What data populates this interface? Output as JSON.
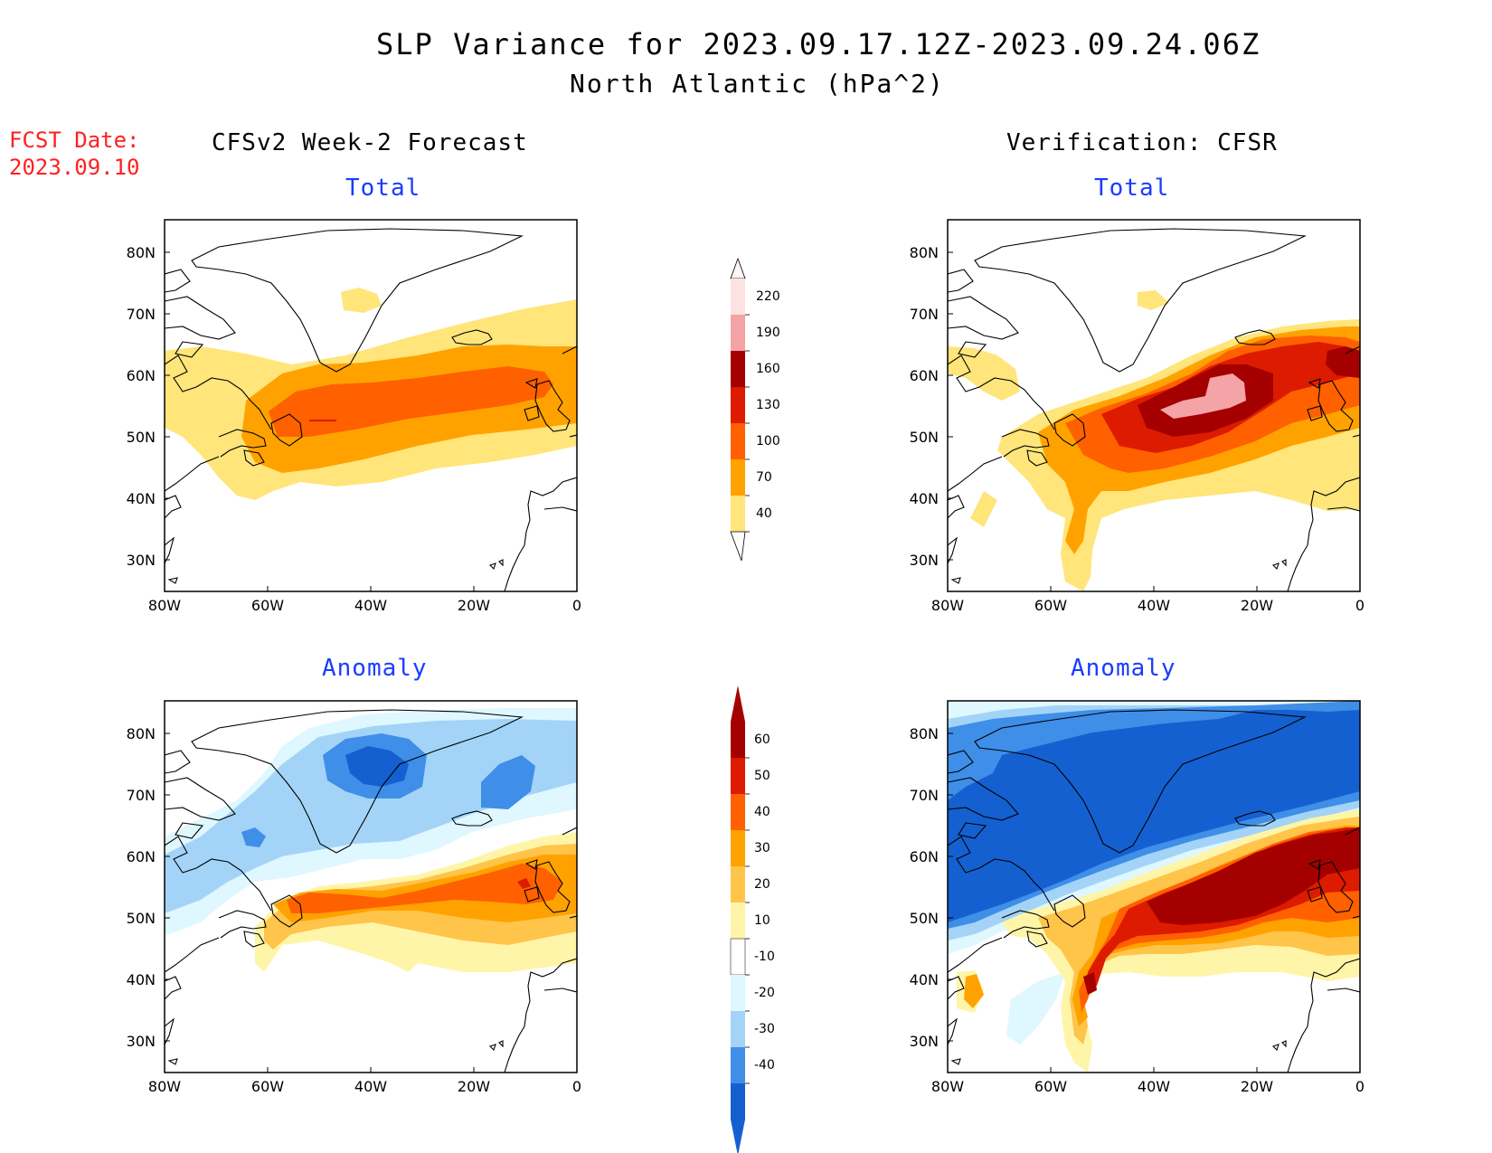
{
  "header": {
    "title_line1": "SLP Variance for 2023.09.17.12Z-2023.09.24.06Z",
    "title_line2": "North Atlantic (hPa^2)"
  },
  "fcst": {
    "line1": "FCST Date:",
    "line2": "2023.09.10"
  },
  "columns": {
    "left_title": "CFSv2 Week-2 Forecast",
    "right_title": "Verification: CFSR"
  },
  "panels": {
    "top_left": "Total",
    "top_right": "Total",
    "bottom_left": "Anomaly",
    "bottom_right": "Anomaly"
  },
  "axes": {
    "lat_labels": [
      "80N",
      "70N",
      "60N",
      "50N",
      "40N",
      "30N"
    ],
    "lon_labels": [
      "80W",
      "60W",
      "40W",
      "20W",
      "0"
    ]
  },
  "colorbars": {
    "total": {
      "labels": [
        "220",
        "190",
        "160",
        "130",
        "100",
        "70",
        "40"
      ],
      "colors": [
        "#fde2e2",
        "#f4a3a6",
        "#a50000",
        "#dd1b00",
        "#ff6000",
        "#ffa200",
        "#ffe57a"
      ]
    },
    "anomaly": {
      "labels": [
        "60",
        "50",
        "40",
        "30",
        "20",
        "10",
        "-10",
        "-20",
        "-30",
        "-40"
      ],
      "colors": [
        "#a50000",
        "#dd1b00",
        "#ff6000",
        "#ffa200",
        "#ffc44a",
        "#fff5a8",
        "#ffffff",
        "#dff7ff",
        "#a3d4f7",
        "#3f8ee8",
        "#1560d0"
      ]
    }
  },
  "colors": {
    "title_blue": "#1a3cff",
    "fcst_red": "#ff2020"
  }
}
